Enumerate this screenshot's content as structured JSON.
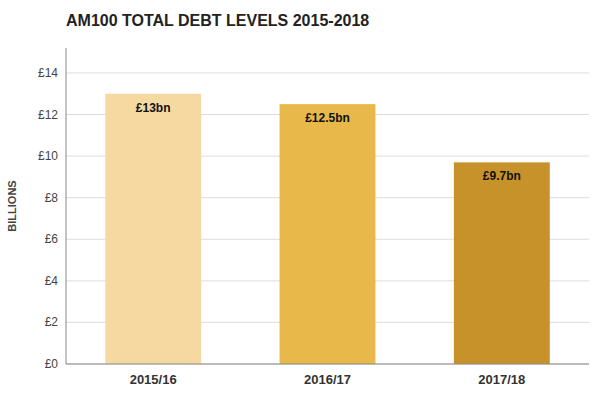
{
  "chart_data": {
    "type": "bar",
    "title": "AM100 TOTAL DEBT LEVELS 2015-2018",
    "categories": [
      "2015/16",
      "2016/17",
      "2017/18"
    ],
    "values": [
      13.0,
      12.5,
      9.7
    ],
    "value_labels": [
      "£13bn",
      "£12.5bn",
      "£9.7bn"
    ],
    "data_labels": true,
    "colors": [
      "#F5D9A0",
      "#E8B84B",
      "#C8922A"
    ],
    "ylabel": "BILLIONS",
    "ylim": [
      0,
      15.2
    ],
    "yticks": [
      {
        "value": 0,
        "label": "£0"
      },
      {
        "value": 2,
        "label": "£2"
      },
      {
        "value": 4,
        "label": "£4"
      },
      {
        "value": 6,
        "label": "£6"
      },
      {
        "value": 8,
        "label": "£8"
      },
      {
        "value": 10,
        "label": "£10"
      },
      {
        "value": 12,
        "label": "£12"
      },
      {
        "value": 14,
        "label": "£14"
      }
    ],
    "grid": true
  }
}
